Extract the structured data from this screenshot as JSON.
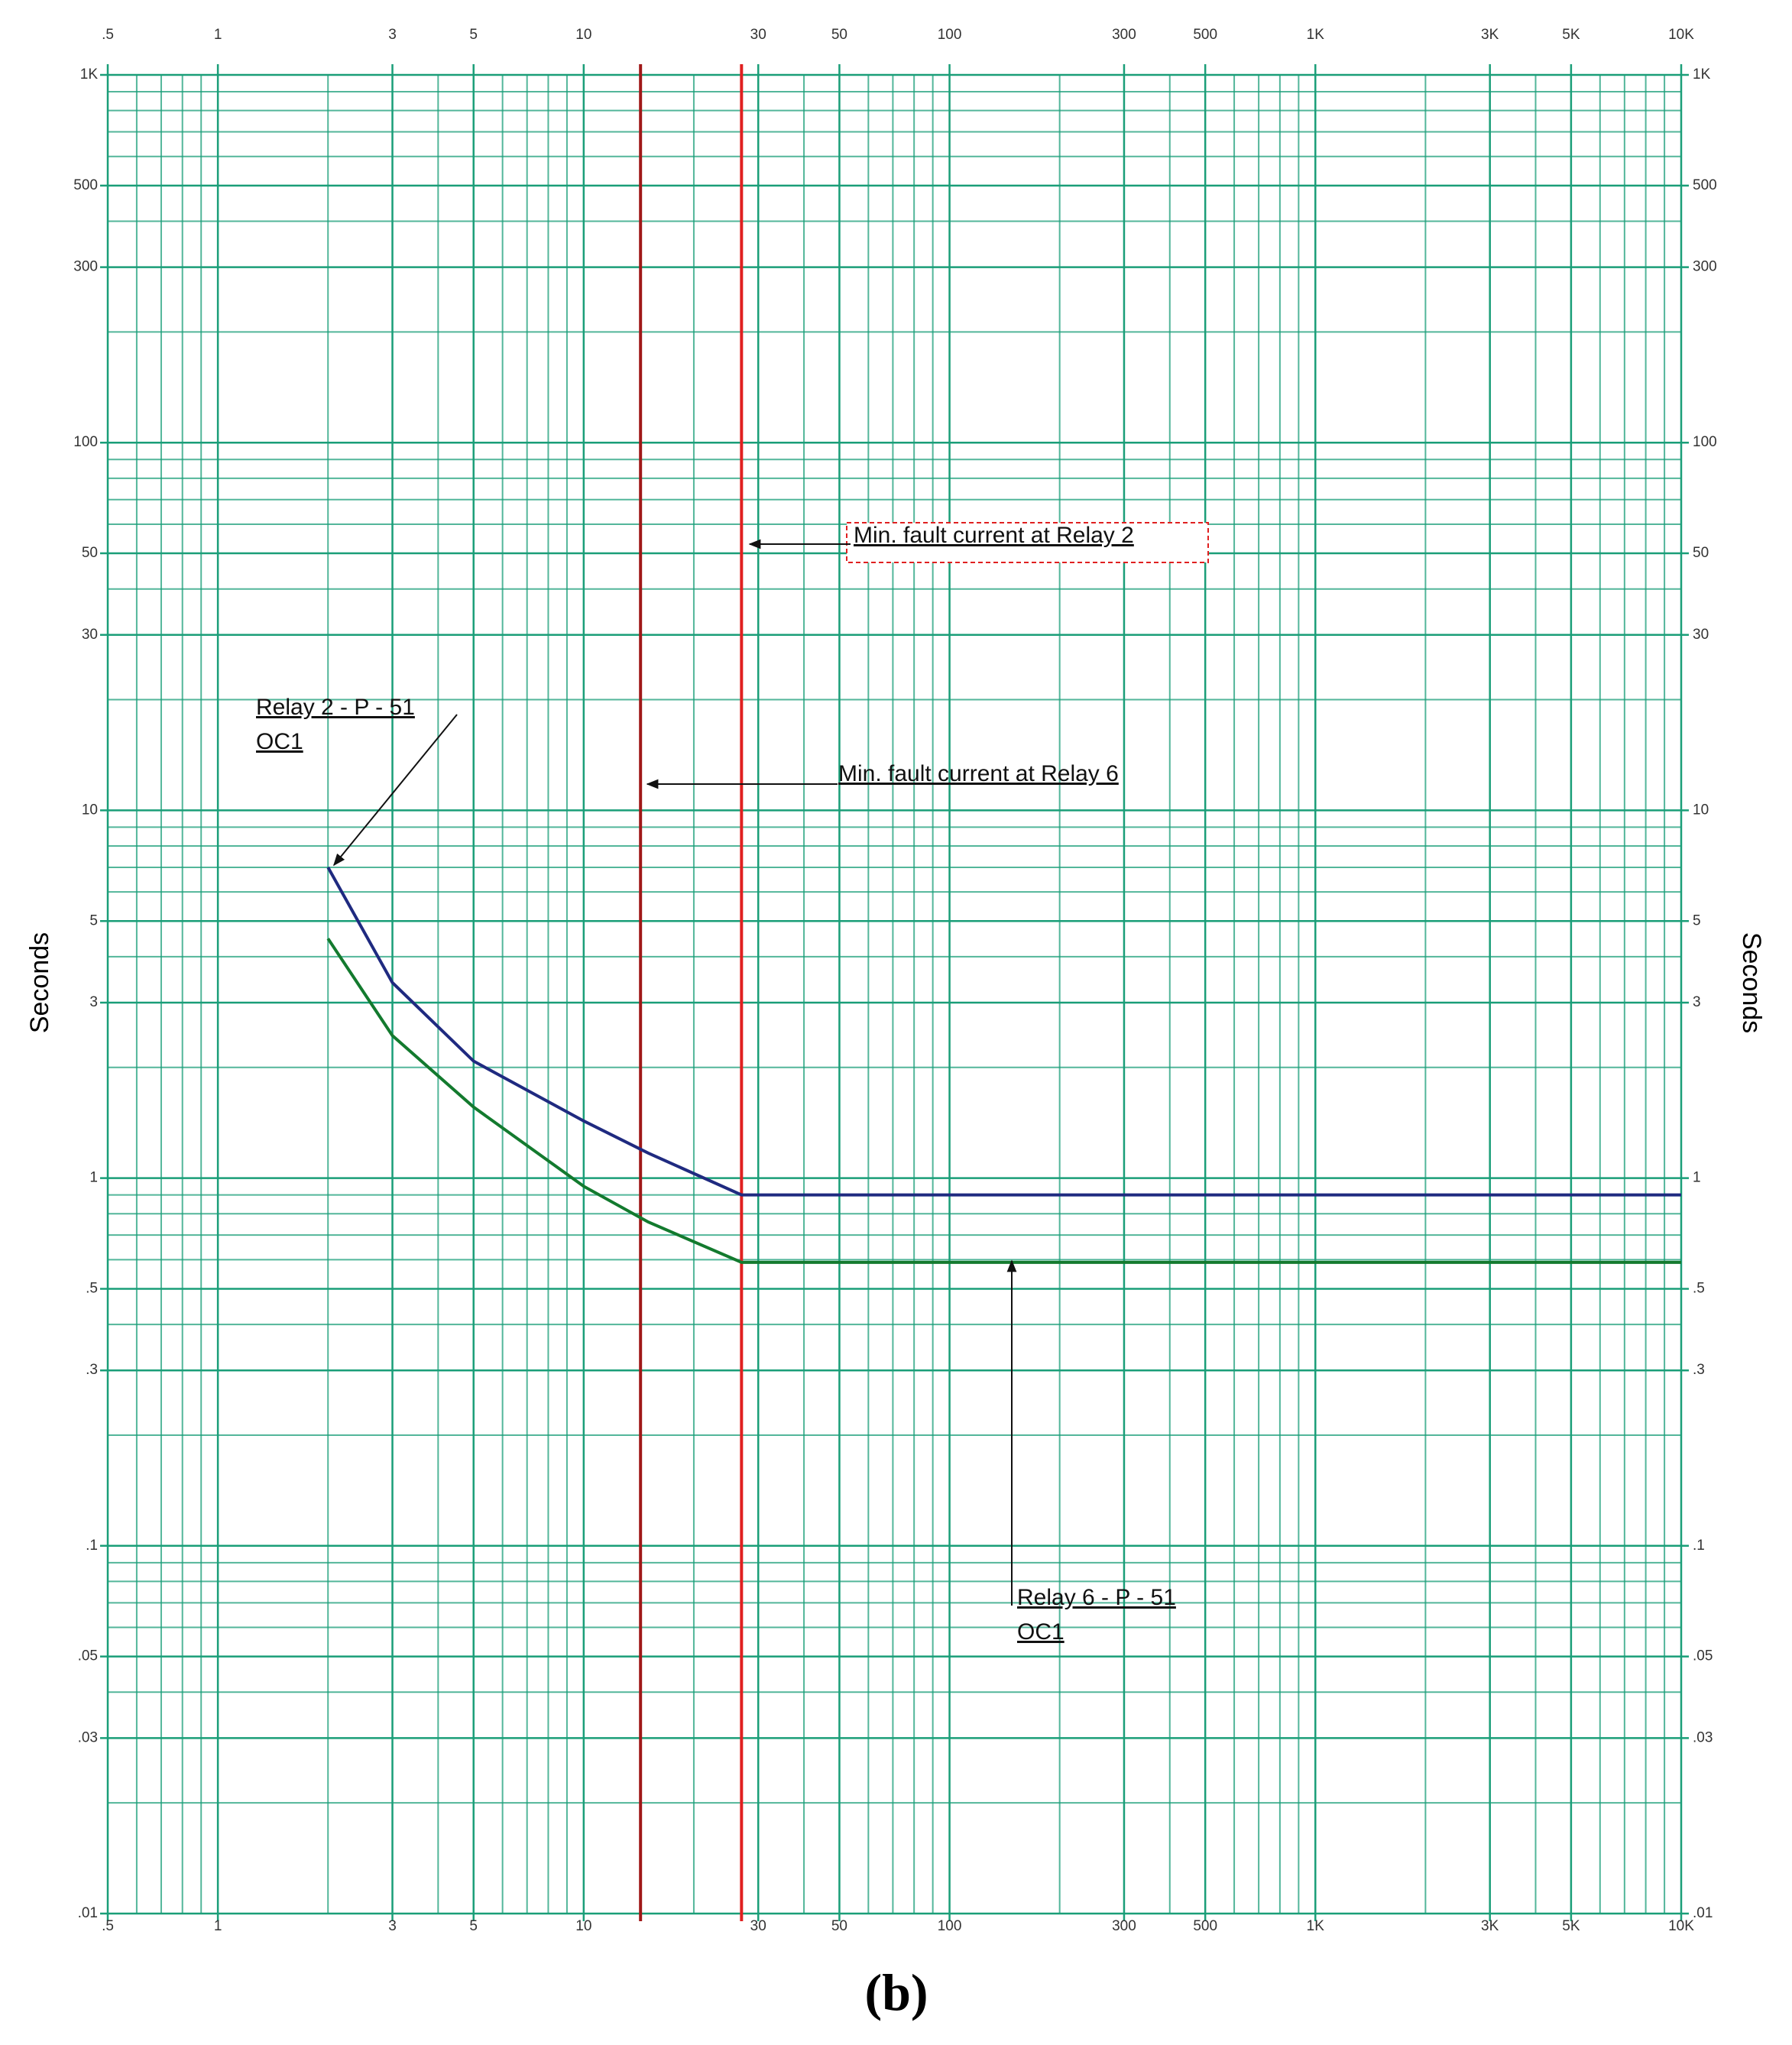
{
  "chart_data": {
    "type": "line",
    "y_label": "Seconds",
    "caption": "(b)",
    "x": [
      2,
      3,
      5,
      10,
      15,
      27,
      10000
    ],
    "series": [
      {
        "color": "#1f2a80",
        "values": [
          7.0,
          3.4,
          2.08,
          1.43,
          1.17,
          0.9,
          0.9
        ]
      },
      {
        "color": "#137a2e",
        "values": [
          4.48,
          2.44,
          1.56,
          0.95,
          0.76,
          0.59,
          0.59
        ]
      }
    ],
    "vlines": [
      {
        "x": 14.3,
        "color": "#a01818"
      },
      {
        "x": 27,
        "color": "#e02020"
      }
    ],
    "xscale": "log",
    "yscale": "log",
    "grid": true,
    "grid_color": "#1a9e78",
    "xlim": [
      0.5,
      10000
    ],
    "ylim": [
      0.01,
      1000
    ],
    "xticks": [
      {
        "value": 0.5,
        "label": ".5"
      },
      1,
      3,
      5,
      10,
      30,
      50,
      100,
      300,
      500,
      {
        "value": 1000,
        "label": "1K"
      },
      {
        "value": 3000,
        "label": "3K"
      },
      {
        "value": 5000,
        "label": "5K"
      },
      {
        "value": 10000,
        "label": "10K"
      }
    ],
    "yticks": [
      {
        "value": 0.01,
        "label": ".01"
      },
      {
        "value": 0.03,
        "label": ".03"
      },
      {
        "value": 0.05,
        "label": ".05"
      },
      {
        "value": 0.1,
        "label": ".1"
      },
      {
        "value": 0.3,
        "label": ".3"
      },
      {
        "value": 0.5,
        "label": ".5"
      },
      1,
      3,
      5,
      10,
      30,
      50,
      100,
      300,
      500,
      {
        "value": 1000,
        "label": "1K"
      }
    ],
    "annotations": [
      "Min. fault current at Relay 2",
      "Relay 2 - P - 51",
      "OC1",
      "Min. fault current at Relay 6",
      "Relay 6 - P - 51",
      "OC1"
    ]
  }
}
